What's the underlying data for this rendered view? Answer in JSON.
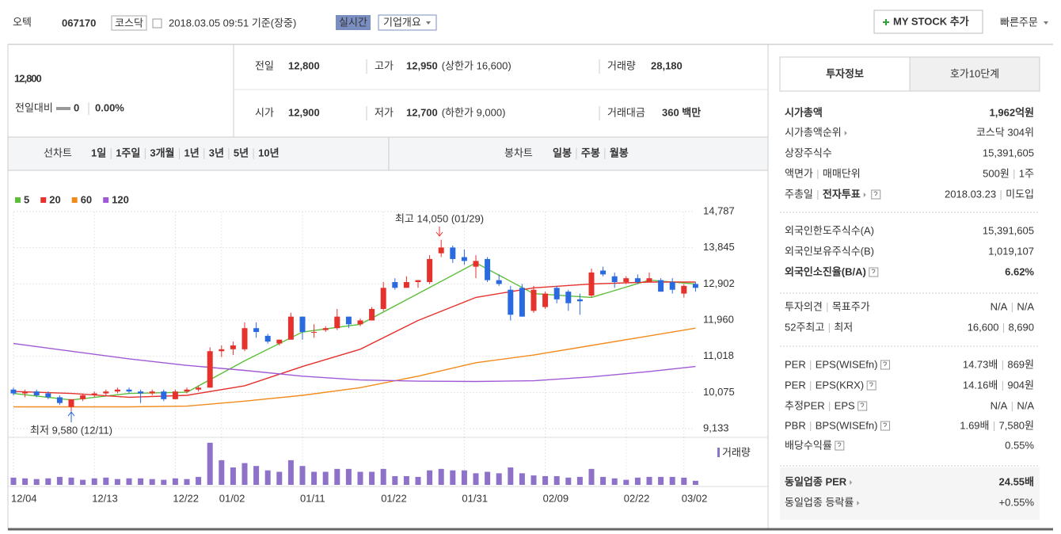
{
  "header": {
    "name": "오텍",
    "code": "067170",
    "market": "코스닥",
    "timestamp": "2018.03.05 09:51 기준(장중)",
    "realtime": "실시간",
    "company_info": "기업개요",
    "my_stock": "MY STOCK 추가",
    "quick_order": "빠른주문"
  },
  "price": {
    "current": "12,800",
    "change_label": "전일대비",
    "change": "0",
    "rate": "0.00%"
  },
  "quote": [
    {
      "label": "전일",
      "value": "12,800"
    },
    {
      "label": "고가",
      "value": "12,950",
      "sub": "(상한가 16,600)"
    },
    {
      "label": "거래량",
      "value": "28,180"
    },
    {
      "label": "시가",
      "value": "12,900"
    },
    {
      "label": "저가",
      "value": "12,700",
      "sub": "(하한가 9,000)"
    },
    {
      "label": "거래대금",
      "value": "360 백만"
    }
  ],
  "chart_tabs": {
    "line_label": "선차트",
    "line_periods": [
      "1일",
      "1주일",
      "3개월",
      "1년",
      "3년",
      "5년",
      "10년"
    ],
    "candle_label": "봉차트",
    "candle_periods": [
      "일봉",
      "주봉",
      "월봉"
    ]
  },
  "price_chart": {
    "type": "candlestick",
    "up_color": "#e5322d",
    "down_color": "#2a6ae0",
    "ylim": [
      9133,
      14787
    ],
    "yticks": [
      {
        "value": 14787,
        "label": "14,787"
      },
      {
        "value": 13845,
        "label": "13,845"
      },
      {
        "value": 12902,
        "label": "12,902"
      },
      {
        "value": 11960,
        "label": "11,960"
      },
      {
        "value": 11018,
        "label": "11,018"
      },
      {
        "value": 10075,
        "label": "10,075"
      },
      {
        "value": 9133,
        "label": "9,133"
      }
    ],
    "categories": [
      "12/04",
      null,
      null,
      null,
      null,
      null,
      null,
      "12/13",
      null,
      null,
      null,
      null,
      null,
      null,
      "12/22",
      null,
      null,
      null,
      "01/02",
      null,
      null,
      null,
      null,
      null,
      null,
      "01/11",
      null,
      null,
      null,
      null,
      null,
      null,
      "01/22",
      null,
      null,
      null,
      null,
      null,
      null,
      "01/31",
      null,
      null,
      null,
      null,
      null,
      null,
      "02/09",
      null,
      null,
      null,
      null,
      null,
      null,
      "02/22",
      null,
      null,
      null,
      null,
      "03/02",
      null
    ],
    "candles": [
      [
        10150,
        10200,
        10000,
        10050
      ],
      [
        10050,
        10150,
        9950,
        10100
      ],
      [
        10100,
        10150,
        9950,
        10000
      ],
      [
        10050,
        10100,
        9900,
        9950
      ],
      [
        9950,
        10000,
        9750,
        9800
      ],
      [
        9700,
        9900,
        9580,
        9900
      ],
      [
        9900,
        10050,
        9850,
        10000
      ],
      [
        10000,
        10100,
        9950,
        10050
      ],
      [
        10050,
        10150,
        10000,
        10100
      ],
      [
        10100,
        10200,
        10050,
        10150
      ],
      [
        10150,
        10200,
        10050,
        10100
      ],
      [
        10100,
        10150,
        9800,
        10050
      ],
      [
        10050,
        10150,
        10000,
        10100
      ],
      [
        10100,
        10150,
        9850,
        9900
      ],
      [
        9900,
        10150,
        9900,
        10100
      ],
      [
        10100,
        10200,
        10050,
        10150
      ],
      [
        10150,
        10250,
        10100,
        10200
      ],
      [
        10200,
        11250,
        10200,
        11150
      ],
      [
        11150,
        11300,
        11000,
        11200
      ],
      [
        11200,
        11400,
        11050,
        11300
      ],
      [
        11200,
        11900,
        11150,
        11750
      ],
      [
        11750,
        11900,
        11500,
        11650
      ],
      [
        11550,
        11600,
        11350,
        11400
      ],
      [
        11350,
        11450,
        11300,
        11450
      ],
      [
        11450,
        12150,
        11450,
        12050
      ],
      [
        12050,
        12050,
        11450,
        11650
      ],
      [
        11650,
        11850,
        11500,
        11650
      ],
      [
        11700,
        11800,
        11650,
        11750
      ],
      [
        11750,
        12250,
        11700,
        12050
      ],
      [
        12050,
        12050,
        11750,
        11850
      ],
      [
        11850,
        12000,
        11800,
        11950
      ],
      [
        11950,
        12300,
        11950,
        12250
      ],
      [
        12250,
        12950,
        12200,
        12800
      ],
      [
        12950,
        13050,
        12750,
        12800
      ],
      [
        12800,
        13100,
        12800,
        12950
      ],
      [
        12950,
        13000,
        12800,
        13000
      ],
      [
        12950,
        13650,
        12900,
        13550
      ],
      [
        13700,
        14050,
        13600,
        13850
      ],
      [
        13850,
        13900,
        13450,
        13550
      ],
      [
        13600,
        13800,
        13400,
        13500
      ],
      [
        13350,
        13650,
        13050,
        13500
      ],
      [
        13550,
        13600,
        12950,
        13000
      ],
      [
        13000,
        13150,
        12850,
        12900
      ],
      [
        12750,
        12850,
        11950,
        12100
      ],
      [
        12800,
        12900,
        12050,
        12050
      ],
      [
        12200,
        12850,
        12150,
        12750
      ],
      [
        12300,
        12700,
        12250,
        12650
      ],
      [
        12800,
        12850,
        12400,
        12500
      ],
      [
        12700,
        12750,
        12200,
        12400
      ],
      [
        12500,
        12650,
        12100,
        12450
      ],
      [
        12600,
        13300,
        12550,
        13200
      ],
      [
        13250,
        13350,
        13100,
        13150
      ],
      [
        13100,
        13200,
        12800,
        12950
      ],
      [
        12950,
        13100,
        12900,
        13050
      ],
      [
        13050,
        13150,
        12900,
        12950
      ],
      [
        12950,
        13200,
        12950,
        13050
      ],
      [
        13000,
        13050,
        12700,
        12700
      ],
      [
        12950,
        13050,
        12650,
        12750
      ],
      [
        12650,
        12900,
        12550,
        12850
      ],
      [
        12900,
        12950,
        12700,
        12800
      ]
    ],
    "ma_x": [
      0,
      5,
      10,
      15,
      20,
      25,
      30,
      35,
      40,
      45,
      50,
      55,
      59
    ],
    "ma": [
      {
        "name": "5",
        "color": "#5cbf3a",
        "values": [
          10050,
          9880,
          10050,
          10080,
          10900,
          11650,
          11850,
          12650,
          13450,
          12650,
          12550,
          13000,
          12900
        ]
      },
      {
        "name": "20",
        "color": "#e5322d",
        "values": [
          10100,
          10050,
          9950,
          10000,
          10250,
          10750,
          11200,
          11950,
          12550,
          12800,
          12900,
          12950,
          12950
        ]
      },
      {
        "name": "60",
        "color": "#f28b1c",
        "values": [
          9700,
          9700,
          9700,
          9720,
          9850,
          10000,
          10200,
          10500,
          10850,
          11050,
          11300,
          11550,
          11750
        ]
      },
      {
        "name": "120",
        "color": "#a15ad6",
        "values": [
          11350,
          11150,
          10950,
          10780,
          10650,
          10500,
          10400,
          10370,
          10360,
          10380,
          10480,
          10620,
          10750
        ]
      }
    ],
    "annotations": {
      "high": "최고 14,050 (01/29)",
      "low": "최저 9,580 (12/11)"
    },
    "volume": {
      "label": "거래량",
      "color": "#8e72c9",
      "ylim": [
        0,
        300000
      ],
      "values": [
        50000,
        45000,
        40000,
        45000,
        55000,
        50000,
        35000,
        45000,
        50000,
        40000,
        45000,
        45000,
        40000,
        35000,
        45000,
        40000,
        55000,
        290000,
        170000,
        120000,
        150000,
        130000,
        100000,
        90000,
        170000,
        130000,
        90000,
        90000,
        110000,
        110000,
        90000,
        90000,
        110000,
        60000,
        60000,
        55000,
        100000,
        110000,
        100000,
        100000,
        80000,
        90000,
        80000,
        120000,
        80000,
        65000,
        60000,
        60000,
        50000,
        55000,
        110000,
        55000,
        45000,
        35000,
        50000,
        55000,
        55000,
        55000,
        50000,
        28180
      ]
    }
  },
  "side": {
    "tabs": [
      "투자정보",
      "호가10단계"
    ],
    "sections": [
      {
        "rows": [
          {
            "labels": [
              "시가총액"
            ],
            "values": [
              "1,962억원"
            ]
          },
          {
            "labels": [
              "시가총액순위"
            ],
            "values": [
              "코스닥 304위"
            ]
          },
          {
            "labels": [
              "상장주식수"
            ],
            "values": [
              "15,391,605"
            ]
          },
          {
            "labels": [
              "액면가",
              "매매단위"
            ],
            "values": [
              "500원",
              "1주"
            ]
          },
          {
            "labels": [
              "주총일",
              "전자투표"
            ],
            "values": [
              "2018.03.23",
              "미도입"
            ]
          }
        ]
      },
      {
        "rows": [
          {
            "labels": [
              "외국인한도주식수(A)"
            ],
            "values": [
              "15,391,605"
            ]
          },
          {
            "labels": [
              "외국인보유주식수(B)"
            ],
            "values": [
              "1,019,107"
            ]
          },
          {
            "labels": [
              "외국인소진율(B/A)"
            ],
            "values": [
              "6.62%"
            ]
          }
        ]
      },
      {
        "rows": [
          {
            "labels": [
              "투자의견",
              "목표주가"
            ],
            "values": [
              "N/A",
              "N/A"
            ]
          },
          {
            "labels": [
              "52주최고",
              "최저"
            ],
            "values": [
              "16,600",
              "8,690"
            ]
          }
        ]
      },
      {
        "rows": [
          {
            "labels": [
              "PER",
              "EPS(WISEfn)"
            ],
            "values": [
              "14.73배",
              "869원"
            ]
          },
          {
            "labels": [
              "PER",
              "EPS(KRX)"
            ],
            "values": [
              "14.16배",
              "904원"
            ]
          },
          {
            "labels": [
              "추정PER",
              "EPS"
            ],
            "values": [
              "N/A",
              "N/A"
            ]
          },
          {
            "labels": [
              "PBR",
              "BPS(WISEfn)"
            ],
            "values": [
              "1.69배",
              "7,580원"
            ]
          },
          {
            "labels": [
              "배당수익률"
            ],
            "values": [
              "0.55%"
            ]
          }
        ]
      },
      {
        "rows": [
          {
            "labels": [
              "동일업종 PER"
            ],
            "values": [
              "24.55배"
            ]
          },
          {
            "labels": [
              "동일업종 등락률"
            ],
            "values": [
              "+0.55%"
            ]
          }
        ]
      }
    ]
  }
}
